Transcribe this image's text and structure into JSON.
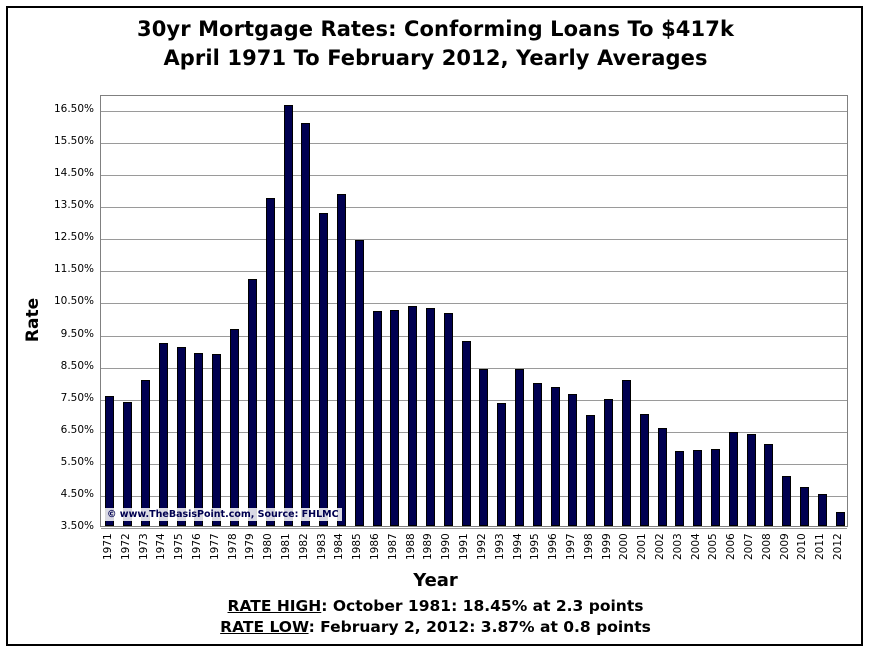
{
  "chart_data": {
    "type": "bar",
    "title": "30yr Mortgage Rates: Conforming Loans To $417k",
    "subtitle": "April 1971 To February 2012, Yearly Averages",
    "xlabel": "Year",
    "ylabel": "Rate",
    "ylim": [
      3.5,
      17.0
    ],
    "yticks": [
      "3.50%",
      "4.50%",
      "5.50%",
      "6.50%",
      "7.50%",
      "8.50%",
      "9.50%",
      "10.50%",
      "11.50%",
      "12.50%",
      "13.50%",
      "14.50%",
      "15.50%",
      "16.50%"
    ],
    "grid": true,
    "legend": null,
    "bar_color": "#000050",
    "categories": [
      "1971",
      "1972",
      "1973",
      "1974",
      "1975",
      "1976",
      "1977",
      "1978",
      "1979",
      "1980",
      "1981",
      "1982",
      "1983",
      "1984",
      "1985",
      "1986",
      "1987",
      "1988",
      "1989",
      "1990",
      "1991",
      "1992",
      "1993",
      "1994",
      "1995",
      "1996",
      "1997",
      "1998",
      "1999",
      "2000",
      "2001",
      "2002",
      "2003",
      "2004",
      "2005",
      "2006",
      "2007",
      "2008",
      "2009",
      "2010",
      "2011",
      "2012"
    ],
    "values": [
      7.55,
      7.37,
      8.05,
      9.2,
      9.08,
      8.89,
      8.86,
      9.64,
      11.2,
      13.74,
      16.64,
      16.06,
      13.26,
      13.85,
      12.42,
      10.2,
      10.23,
      10.36,
      10.3,
      10.14,
      9.27,
      8.39,
      7.33,
      8.39,
      7.96,
      7.83,
      7.61,
      6.96,
      7.46,
      8.05,
      6.99,
      6.55,
      5.84,
      5.87,
      5.9,
      6.43,
      6.37,
      6.06,
      5.06,
      4.72,
      4.5,
      3.94
    ],
    "annotations": [
      "© www.TheBasisPoint.com, Source: FHLMC",
      "RATE HIGH: October 1981: 18.45% at 2.3 points",
      "RATE LOW: February 2, 2012: 3.87% at 0.8 points"
    ]
  },
  "title_line1": "30yr Mortgage Rates: Conforming Loans To $417k",
  "title_line2": "April 1971 To February 2012, Yearly Averages",
  "axis": {
    "x_label": "Year",
    "y_label": "Rate"
  },
  "watermark": "© www.TheBasisPoint.com, Source: FHLMC",
  "notes": {
    "high_label": "RATE HIGH",
    "high_text": ": October 1981: 18.45% at 2.3 points",
    "low_label": "RATE LOW",
    "low_text": ": February 2, 2012: 3.87% at 0.8 points"
  }
}
